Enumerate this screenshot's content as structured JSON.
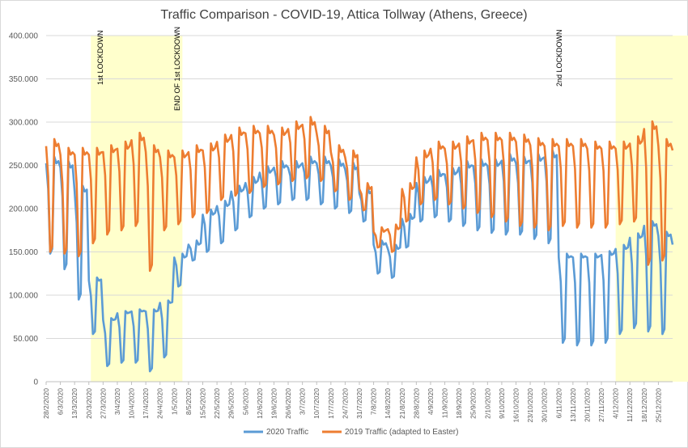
{
  "chart_data": {
    "type": "line",
    "title": "Traffic Comparison - COVID-19, Attica Tollway (Athens, Greece)",
    "xlabel": "",
    "ylabel": "",
    "ylim": [
      0,
      400000
    ],
    "grid": true,
    "legend_position": "bottom",
    "y_ticks": [
      "0",
      "50.000",
      "100.000",
      "150.000",
      "200.000",
      "250.000",
      "300.000",
      "350.000",
      "400.000"
    ],
    "x_tick_labels": [
      "28/2/2020",
      "6/3/2020",
      "13/3/2020",
      "20/3/2020",
      "27/3/2020",
      "3/4/2020",
      "10/4/2020",
      "17/4/2020",
      "24/4/2020",
      "1/5/2020",
      "8/5/2020",
      "15/5/2020",
      "22/5/2020",
      "29/5/2020",
      "5/6/2020",
      "12/6/2020",
      "19/6/2020",
      "26/6/2020",
      "3/7/2020",
      "10/7/2020",
      "17/7/2020",
      "24/7/2020",
      "31/7/2020",
      "7/8/2020",
      "14/8/2020",
      "21/8/2020",
      "28/8/2020",
      "4/9/2020",
      "11/9/2020",
      "18/9/2020",
      "25/9/2020",
      "2/10/2020",
      "9/10/2020",
      "16/10/2020",
      "23/10/2020",
      "30/10/2020",
      "6/11/2020",
      "13/11/2020",
      "20/11/2020",
      "27/11/2020",
      "4/12/2020",
      "11/12/2020",
      "18/12/2020",
      "25/12/2020"
    ],
    "shaded_periods": [
      {
        "start_day": 22,
        "end_day": 67,
        "label": "1st LOCKDOWN",
        "end_label": "END OF 1st  LOCKDOWN"
      },
      {
        "start_day": 280,
        "end_day": 336,
        "label": "2nd LOCKDOWN"
      }
    ],
    "weekly_level_series": [
      {
        "name": "2020 Traffic",
        "color": "#5b9bd5",
        "weekly_weekday_level_thousands": [
          255,
          250,
          222,
          118,
          72,
          80,
          82,
          82,
          92,
          145,
          160,
          195,
          205,
          222,
          232,
          244,
          250,
          250,
          255,
          255,
          252,
          248,
          220,
          160,
          155,
          190,
          232,
          240,
          242,
          250,
          252,
          252,
          258,
          255,
          258,
          262,
          145,
          145,
          145,
          148,
          155,
          168,
          182,
          170,
          160
        ],
        "weekly_weekend_level_thousands": [
          148,
          130,
          95,
          55,
          18,
          22,
          22,
          12,
          28,
          110,
          140,
          150,
          160,
          175,
          190,
          200,
          205,
          210,
          210,
          205,
          200,
          195,
          185,
          125,
          120,
          155,
          185,
          190,
          185,
          180,
          175,
          172,
          170,
          170,
          165,
          160,
          45,
          42,
          42,
          45,
          55,
          62,
          58,
          55,
          140
        ]
      },
      {
        "name": "2019 Traffic (adapted to Easter)",
        "color": "#ed7d31",
        "weekly_weekday_level_thousands": [
          275,
          265,
          265,
          265,
          268,
          272,
          282,
          268,
          262,
          262,
          268,
          270,
          280,
          288,
          290,
          290,
          288,
          295,
          300,
          290,
          268,
          262,
          225,
          175,
          178,
          225,
          262,
          272,
          272,
          278,
          282,
          282,
          282,
          280,
          276,
          275,
          275,
          275,
          272,
          272,
          272,
          278,
          295,
          275,
          270
        ],
        "weekly_weekend_level_thousands": [
          150,
          148,
          145,
          160,
          170,
          175,
          180,
          128,
          175,
          182,
          190,
          195,
          210,
          215,
          218,
          225,
          228,
          232,
          235,
          232,
          220,
          210,
          198,
          155,
          150,
          185,
          205,
          210,
          205,
          200,
          195,
          190,
          185,
          180,
          178,
          175,
          180,
          178,
          178,
          178,
          182,
          185,
          135,
          140,
          195
        ]
      }
    ]
  },
  "annotations": {
    "lockdown1": "1st LOCKDOWN",
    "end_lockdown1": "END OF 1st  LOCKDOWN",
    "lockdown2": "2nd LOCKDOWN"
  },
  "legend": {
    "series_2020": "2020 Traffic",
    "series_2019": "2019 Traffic (adapted to Easter)"
  }
}
